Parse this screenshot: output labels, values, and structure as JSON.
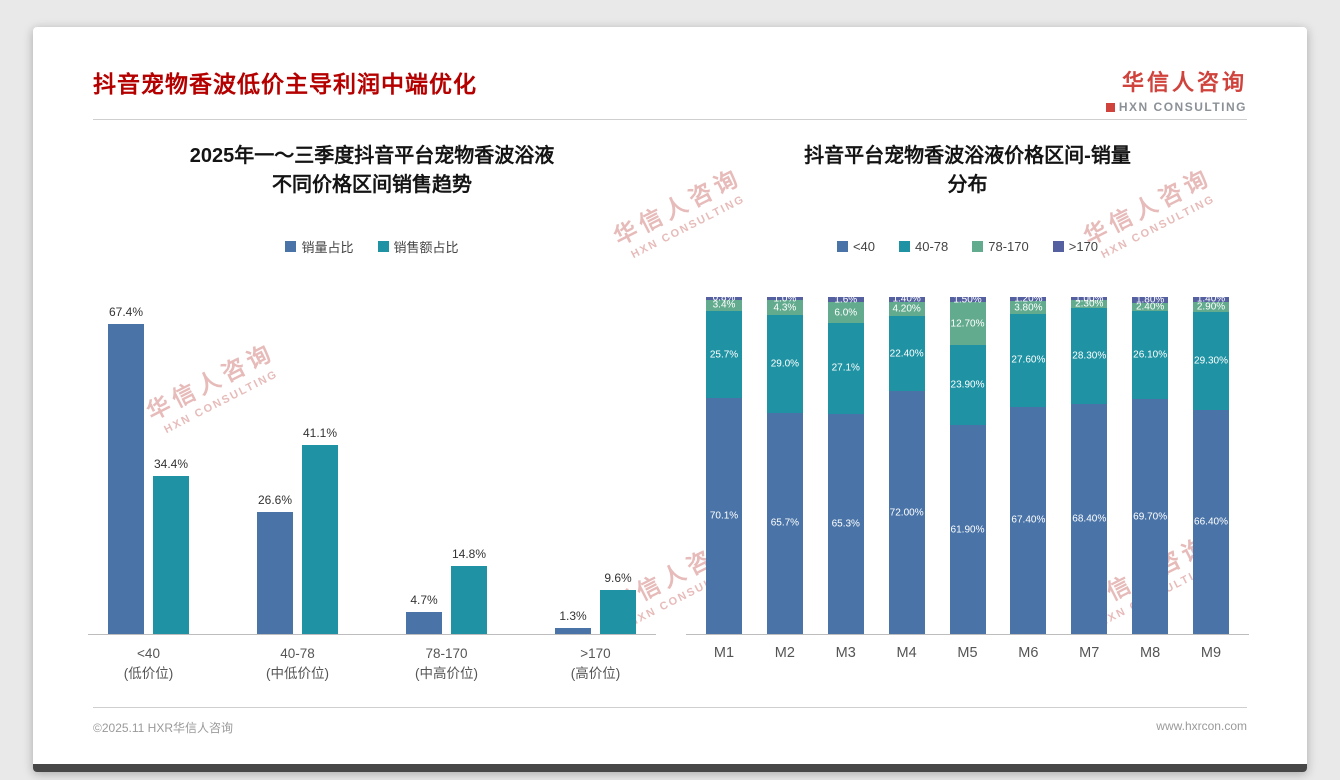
{
  "page": {
    "title": "抖音宠物香波低价主导利润中端优化",
    "footer_left": "©2025.11 HXR华信人咨询",
    "footer_right": "www.hxrcon.com"
  },
  "logo": {
    "name": "华信人咨询",
    "subtitle": "HXN CONSULTING"
  },
  "watermark": {
    "line1": "华信人咨询",
    "line2": "HXN CONSULTING"
  },
  "colors": {
    "title_red": "#b50000",
    "series_blue": "#4a74a8",
    "series_teal": "#1f93a3",
    "series_green": "#63ab8f",
    "series_purple": "#5560a0"
  },
  "chart_data": [
    {
      "type": "bar",
      "title": "2025年一～三季度抖音平台宠物香波浴液不同价格区间销售趋势",
      "title_lines": [
        "2025年一～三季度抖音平台宠物香波浴液",
        "不同价格区间销售趋势"
      ],
      "categories": [
        [
          "<40",
          "(低价位)"
        ],
        [
          "40-78",
          "(中低价位)"
        ],
        [
          "78-170",
          "(中高价位)"
        ],
        [
          ">170",
          "(高价位)"
        ]
      ],
      "series": [
        {
          "name": "销量占比",
          "color": "#4a74a8",
          "values": [
            67.4,
            26.6,
            4.7,
            1.3
          ]
        },
        {
          "name": "销售额占比",
          "color": "#1f93a3",
          "values": [
            34.4,
            41.1,
            14.8,
            9.6
          ]
        }
      ],
      "xlabel": "",
      "ylabel": "",
      "ylim": [
        0,
        75
      ],
      "grid": false,
      "legend_position": "top",
      "value_suffix": "%"
    },
    {
      "type": "bar",
      "stacked": true,
      "title": "抖音平台宠物香波浴液价格区间-销量分布",
      "title_lines": [
        "抖音平台宠物香波浴液价格区间-销量",
        "分布"
      ],
      "categories": [
        "M1",
        "M2",
        "M3",
        "M4",
        "M5",
        "M6",
        "M7",
        "M8",
        "M9"
      ],
      "series": [
        {
          "name": "<40",
          "color": "#4a74a8",
          "values": [
            70.1,
            65.7,
            65.3,
            72.0,
            61.9,
            67.4,
            68.4,
            69.7,
            66.4
          ],
          "labels": [
            "70.1%",
            "65.7%",
            "65.3%",
            "72.00%",
            "61.90%",
            "67.40%",
            "68.40%",
            "69.70%",
            "66.40%"
          ]
        },
        {
          "name": "40-78",
          "color": "#1f93a3",
          "values": [
            25.7,
            29.0,
            27.1,
            22.4,
            23.9,
            27.6,
            28.3,
            26.1,
            29.3
          ],
          "labels": [
            "25.7%",
            "29.0%",
            "27.1%",
            "22.40%",
            "23.90%",
            "27.60%",
            "28.30%",
            "26.10%",
            "29.30%"
          ]
        },
        {
          "name": "78-170",
          "color": "#63ab8f",
          "values": [
            3.4,
            4.3,
            6.0,
            4.2,
            12.7,
            3.8,
            2.3,
            2.4,
            2.9
          ],
          "labels": [
            "3.4%",
            "4.3%",
            "6.0%",
            "4.20%",
            "12.70%",
            "3.80%",
            "2.30%",
            "2.40%",
            "2.90%"
          ]
        },
        {
          "name": ">170",
          "color": "#5560a0",
          "values": [
            0.8,
            1.0,
            1.6,
            1.4,
            1.5,
            1.2,
            1.0,
            1.8,
            1.4
          ],
          "labels": [
            "0.8%",
            "1.0%",
            "1.6%",
            "1.40%",
            "1.50%",
            "1.20%",
            "1.00%",
            "1.80%",
            "1.40%"
          ]
        }
      ],
      "xlabel": "",
      "ylabel": "",
      "ylim": [
        0,
        100
      ],
      "grid": false,
      "legend_position": "top",
      "value_suffix": "%"
    }
  ]
}
